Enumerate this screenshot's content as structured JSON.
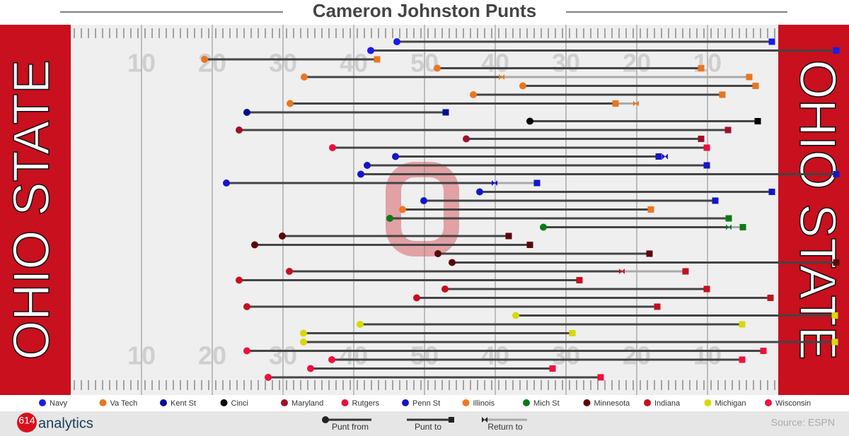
{
  "chart_data": {
    "type": "punt-field",
    "title": "Cameron Johnston Punts",
    "endzone_text": "OHIO STATE",
    "xlim": [
      -10,
      110
    ],
    "xticks": [
      10,
      20,
      30,
      40,
      50,
      {
        "value": 60,
        "label": "40"
      },
      {
        "value": 70,
        "label": "30"
      },
      {
        "value": 80,
        "label": "20"
      },
      {
        "value": 90,
        "label": "10"
      }
    ],
    "series": [
      {
        "name": "Navy",
        "color": "#1a1aee",
        "from": [
          46.1,
          42.4
        ],
        "to": [
          99.1,
          108.2
        ],
        "return_to": [
          null,
          null
        ]
      },
      {
        "name": "Va Tech",
        "color": "#e8761e",
        "from": [
          18.9,
          51.8,
          33.0,
          63.9,
          56.9,
          31.0
        ],
        "to": [
          43.3,
          89.1,
          95.9,
          96.8,
          92.1,
          77.0
        ],
        "return_to": [
          null,
          null,
          60.9,
          null,
          null,
          79.9
        ]
      },
      {
        "name": "Kent St",
        "color": "#0a0a9a",
        "from": [
          24.9
        ],
        "to": [
          53.0
        ],
        "return_to": [
          null
        ]
      },
      {
        "name": "Cinci",
        "color": "#000000",
        "from": [
          64.9
        ],
        "to": [
          97.1
        ],
        "return_to": [
          null
        ]
      },
      {
        "name": "Maryland",
        "color": "#a0102a",
        "from": [
          23.8,
          55.9
        ],
        "to": [
          92.9,
          89.1
        ],
        "return_to": [
          null,
          null
        ]
      },
      {
        "name": "Rutgers",
        "color": "#e8103a",
        "from": [
          37.0
        ],
        "to": [
          89.9
        ],
        "return_to": [
          null
        ]
      },
      {
        "name": "Penn St",
        "color": "#1515c8",
        "from": [
          45.9,
          41.9,
          41.0,
          22.0,
          57.8,
          49.9
        ],
        "to": [
          83.1,
          89.9,
          108.2,
          65.9,
          99.1,
          91.1
        ],
        "return_to": [
          84.0,
          null,
          null,
          59.9,
          null,
          null
        ]
      },
      {
        "name": "Illinois",
        "color": "#f07820",
        "from": [
          46.9
        ],
        "to": [
          82.0
        ],
        "return_to": [
          null
        ]
      },
      {
        "name": "Mich St",
        "color": "#0a7a1a",
        "from": [
          45.1,
          66.8
        ],
        "to": [
          93.0,
          95.0
        ],
        "return_to": [
          null,
          93.0
        ]
      },
      {
        "name": "Minnesota",
        "color": "#5c0808",
        "from": [
          29.9,
          26.0,
          51.9,
          53.9
        ],
        "to": [
          61.9,
          64.9,
          81.8,
          108.2
        ],
        "return_to": [
          null,
          null,
          null,
          null
        ]
      },
      {
        "name": "Indiana",
        "color": "#c4101e",
        "from": [
          30.9,
          23.8,
          52.9,
          48.9,
          24.9
        ],
        "to": [
          86.9,
          71.9,
          89.9,
          98.9,
          82.9
        ],
        "return_to": [
          77.9,
          null,
          null,
          null,
          null
        ]
      },
      {
        "name": "Michigan",
        "color": "#d8d80a",
        "from": [
          62.9,
          40.9,
          32.9,
          32.9
        ],
        "to": [
          108.0,
          94.9,
          70.9,
          108.0
        ],
        "return_to": [
          null,
          null,
          null,
          null
        ]
      },
      {
        "name": "Wisconsin",
        "color": "#f0103c",
        "from": [
          24.9,
          36.9,
          33.9,
          27.9
        ],
        "to": [
          97.9,
          94.9,
          68.1,
          74.9
        ],
        "return_to": [
          null,
          null,
          null,
          null
        ]
      }
    ],
    "key": {
      "from": "Punt from",
      "to": "Punt to",
      "return": "Return to"
    },
    "brand": {
      "number": "614",
      "name": "analytics"
    },
    "source": "Source: ESPN"
  }
}
